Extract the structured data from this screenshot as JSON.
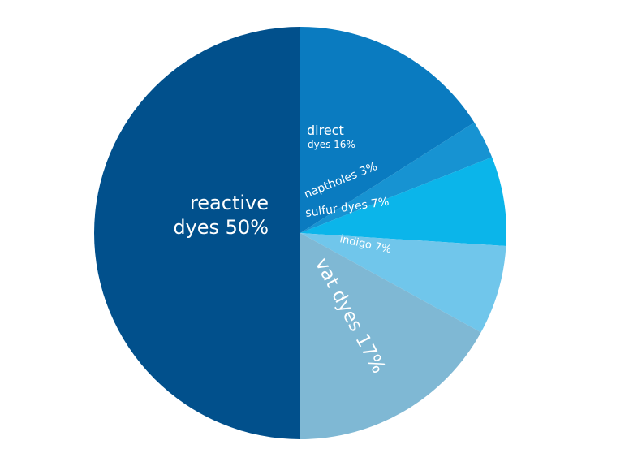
{
  "chart_data": {
    "type": "pie",
    "title": "",
    "start": "top",
    "direction": "clockwise",
    "slices": [
      {
        "label_line1": "direct",
        "label_line2": "dyes 16%",
        "value": 16,
        "color": "#0a7bc0"
      },
      {
        "label_line1": "naptholes 3%",
        "value": 3,
        "color": "#1793d2"
      },
      {
        "label_line1": "sulfur dyes 7%",
        "value": 7,
        "color": "#0bb5ea"
      },
      {
        "label_line1": "indigo 7%",
        "value": 7,
        "color": "#70c6eb"
      },
      {
        "label_line1": "vat dyes 17%",
        "value": 17,
        "color": "#7fb8d4"
      },
      {
        "label_line1": "reactive",
        "label_line2": "dyes 50%",
        "value": 50,
        "color": "#01508c"
      }
    ]
  }
}
